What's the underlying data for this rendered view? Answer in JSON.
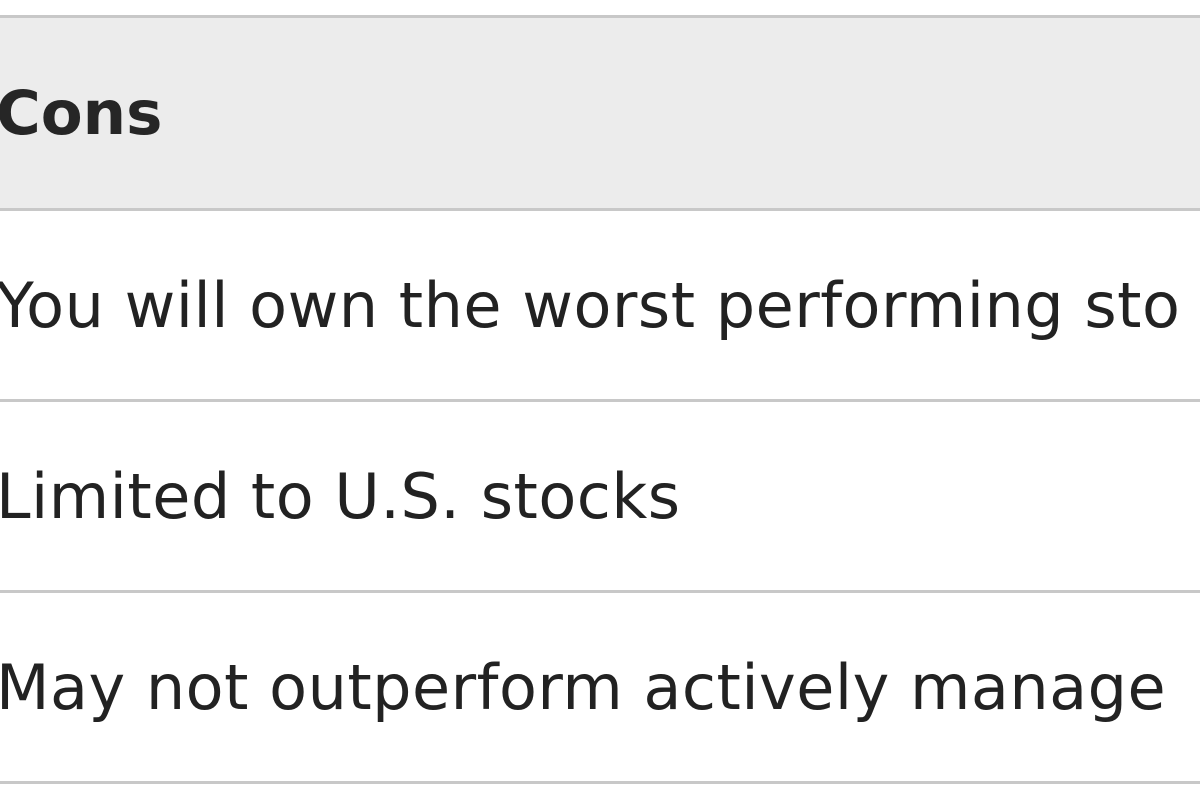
{
  "table": {
    "header": "Cons",
    "rows": [
      "You will own the worst performing sto",
      "Limited to U.S. stocks",
      "May not outperform actively manage"
    ]
  }
}
